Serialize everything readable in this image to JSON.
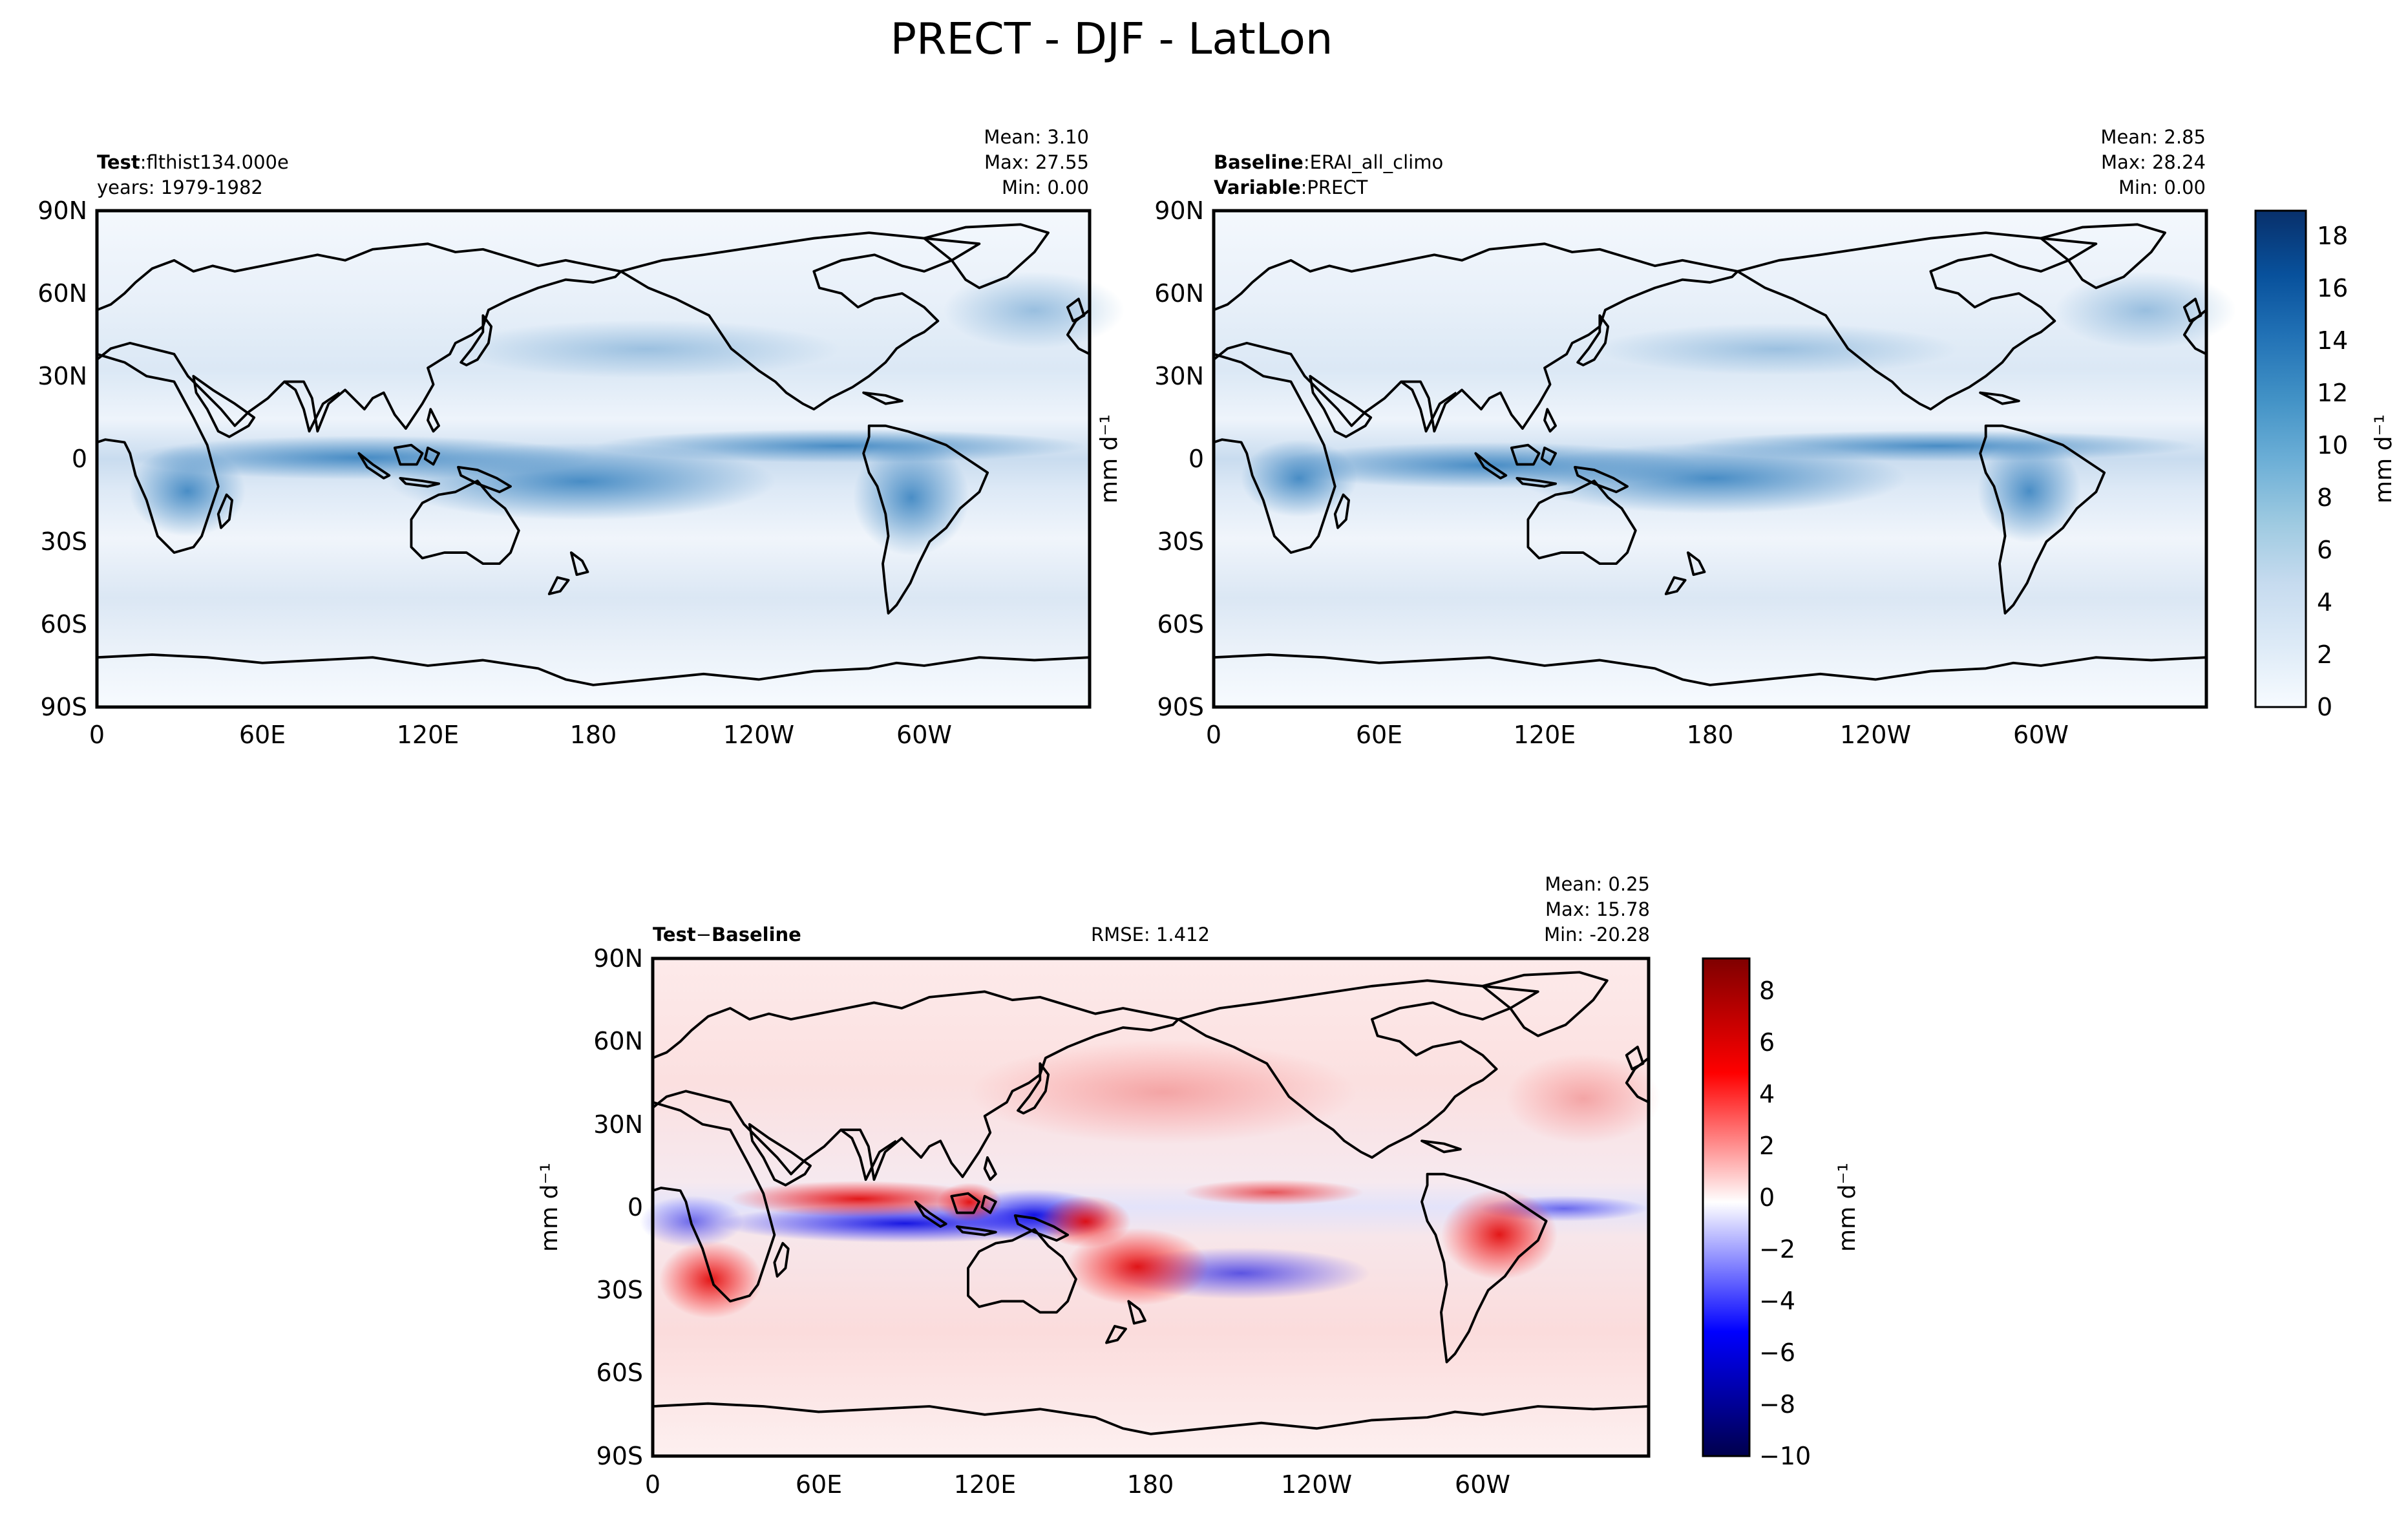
{
  "figure": {
    "title": "PRECT - DJF - LatLon"
  },
  "panels": [
    {
      "id": "test",
      "left_label_bold": "Test",
      "left_label_sep": ":",
      "left_label_value": "flthist134.000e",
      "left_line2": "years: 1979-1982",
      "stats": {
        "mean": "Mean:  3.10",
        "max": "Max: 27.55",
        "min": "Min:  0.00"
      },
      "lat_ticks": [
        "90N",
        "60N",
        "30N",
        "0",
        "30S",
        "60S",
        "90S"
      ],
      "lon_ticks": [
        "0",
        "60E",
        "120E",
        "180",
        "120W",
        "60W"
      ]
    },
    {
      "id": "baseline",
      "left_label_bold": "Baseline",
      "left_label_sep": ":",
      "left_label_value": "ERAI_all_climo",
      "left_line2_bold": "Variable",
      "left_line2_value": "PRECT",
      "stats": {
        "mean": "Mean:  2.85",
        "max": "Max: 28.24",
        "min": "Min:  0.00"
      },
      "lat_ticks": [
        "90N",
        "60N",
        "30N",
        "0",
        "30S",
        "60S",
        "90S"
      ],
      "lon_ticks": [
        "0",
        "60E",
        "120E",
        "180",
        "120W",
        "60W"
      ]
    },
    {
      "id": "difference",
      "left_label_bold": "Test",
      "left_label_sep": "−",
      "left_label_bold2": "Baseline",
      "center_label": "RMSE: 1.412",
      "stats": {
        "mean": "Mean:  0.25",
        "max": "Max: 15.78",
        "min": "Min: -20.28"
      },
      "lat_ticks": [
        "90N",
        "60N",
        "30N",
        "0",
        "30S",
        "60S",
        "90S"
      ],
      "lon_ticks": [
        "0",
        "60E",
        "120E",
        "180",
        "120W",
        "60W"
      ]
    }
  ],
  "colorbars": {
    "precip": {
      "label": "mm d⁻¹",
      "ticks": [
        "0",
        "2",
        "4",
        "6",
        "8",
        "10",
        "12",
        "14",
        "16",
        "18"
      ],
      "range": [
        0,
        19
      ],
      "colors": [
        "#f7fbff",
        "#deebf7",
        "#c6dbef",
        "#9ecae1",
        "#6baed6",
        "#4292c6",
        "#2171b5",
        "#08519c",
        "#08306b"
      ]
    },
    "diff": {
      "label": "mm d⁻¹",
      "ticks": [
        "−10",
        "−8",
        "−6",
        "−4",
        "−2",
        "0",
        "2",
        "4",
        "6",
        "8"
      ],
      "range": [
        -10,
        9.5
      ],
      "colors": [
        "#00004c",
        "#0000ff",
        "#ffffff",
        "#ff0000",
        "#7f0000"
      ]
    }
  },
  "shared_ylabel": "mm d⁻¹",
  "map_axes": {
    "lon_range": [
      0,
      360
    ],
    "lat_range": [
      -90,
      90
    ]
  }
}
